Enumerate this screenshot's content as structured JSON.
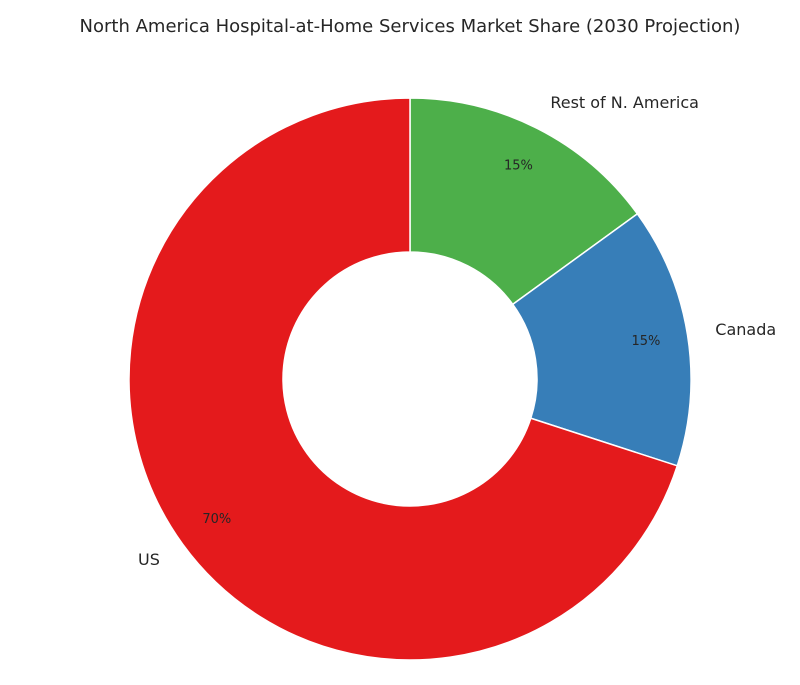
{
  "chart_data": {
    "type": "pie",
    "title": "North America Hospital-at-Home Services Market Share (2030 Projection)",
    "donut": true,
    "start": "12 o'clock",
    "direction": "clockwise",
    "categories": [
      "Rest of N. America",
      "Canada",
      "US"
    ],
    "values": [
      15,
      15,
      70
    ],
    "value_labels": [
      "15%",
      "15%",
      "70%"
    ],
    "colors": [
      "#4daf4a",
      "#377eb8",
      "#e41a1c"
    ]
  }
}
